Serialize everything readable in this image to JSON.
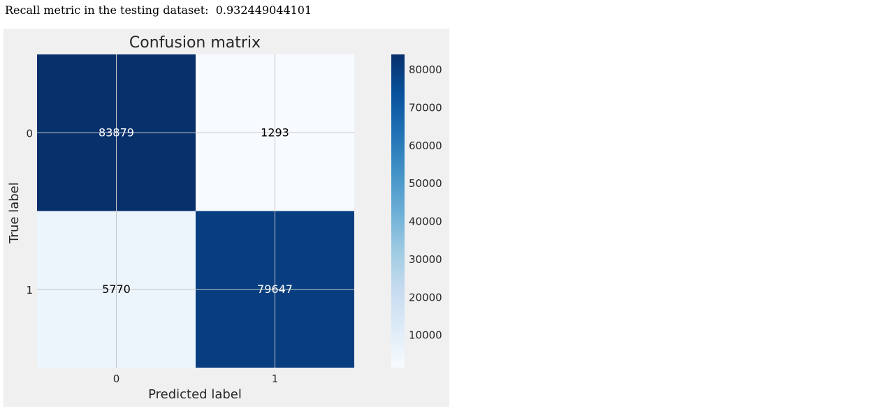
{
  "output": {
    "label": "Recall metric in the testing dataset:",
    "value": "0.932449044101"
  },
  "chart_data": {
    "type": "heatmap",
    "title": "Confusion matrix",
    "xlabel": "Predicted label",
    "ylabel": "True label",
    "x_categories": [
      "0",
      "1"
    ],
    "y_categories": [
      "0",
      "1"
    ],
    "values": [
      [
        83879,
        1293
      ],
      [
        5770,
        79647
      ]
    ],
    "colormap": "Blues",
    "colorbar": {
      "ticks": [
        10000,
        20000,
        30000,
        40000,
        50000,
        60000,
        70000,
        80000
      ],
      "range": [
        1293,
        83879
      ]
    },
    "grid": true,
    "colors": {
      "background": "#f0f0f0",
      "grid": "#c8c8c8"
    }
  }
}
